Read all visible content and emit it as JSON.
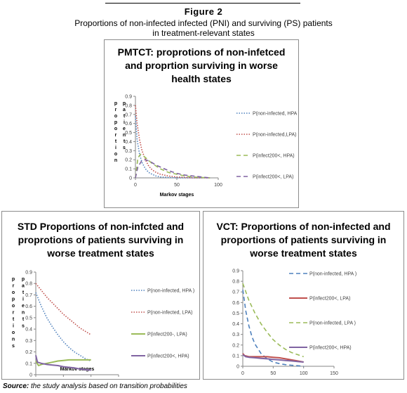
{
  "figure": {
    "title": "Figure 2",
    "caption_line1": "Proportions of non-infected infected (PNI) and surviving (PS) patients",
    "caption_line2": "in treatment-relevant states"
  },
  "source": {
    "label": "Source:",
    "text": "the study analysis based on transition probabilities"
  },
  "chart_data": [
    {
      "type": "line",
      "title_lines": [
        "PMTCT: proprotions of non-infetced",
        "and proprtion surviving in worse",
        "health states"
      ],
      "xlabel": "Markov stages",
      "ylabel": "p r o p o r t i o n",
      "ylabel2": "p a t i e n t s",
      "xlim": [
        0,
        100
      ],
      "ylim": [
        0,
        0.9
      ],
      "xticks": [
        0,
        50,
        100
      ],
      "yticks": [
        0,
        0.1,
        0.2,
        0.3,
        0.4,
        0.5,
        0.6,
        0.7,
        0.8,
        0.9
      ],
      "legend_position": "right",
      "series": [
        {
          "name": "P(non-infected, HPA )",
          "color": "#4f81bd",
          "style": "dotted",
          "x": [
            0,
            2,
            5,
            8,
            12,
            16,
            20,
            25,
            30,
            40,
            50,
            70,
            90
          ],
          "y": [
            0.68,
            0.42,
            0.26,
            0.17,
            0.1,
            0.06,
            0.04,
            0.02,
            0.01,
            0.005,
            0,
            0,
            0
          ]
        },
        {
          "name": "P(non-infected,LPA)",
          "color": "#c0504d",
          "style": "dotted",
          "x": [
            0,
            2,
            5,
            8,
            12,
            16,
            20,
            25,
            30,
            40,
            50,
            70,
            90
          ],
          "y": [
            0.8,
            0.6,
            0.42,
            0.3,
            0.2,
            0.13,
            0.09,
            0.06,
            0.04,
            0.02,
            0.01,
            0,
            0
          ]
        },
        {
          "name": "P(infect200<, HPA)",
          "color": "#9bbb59",
          "style": "dashed",
          "x": [
            0,
            3,
            6,
            10,
            15,
            20,
            25,
            30,
            40,
            50,
            60,
            70,
            80,
            90
          ],
          "y": [
            0,
            0.22,
            0.26,
            0.24,
            0.2,
            0.16,
            0.13,
            0.1,
            0.06,
            0.04,
            0.02,
            0.01,
            0.005,
            0
          ]
        },
        {
          "name": "P(infect200<, LPA)",
          "color": "#8064a2",
          "style": "dashed",
          "x": [
            0,
            3,
            7,
            12,
            18,
            25,
            30,
            40,
            50,
            60,
            70,
            80,
            90
          ],
          "y": [
            0,
            0.12,
            0.18,
            0.2,
            0.18,
            0.14,
            0.12,
            0.08,
            0.05,
            0.03,
            0.02,
            0.01,
            0
          ]
        }
      ]
    },
    {
      "type": "line",
      "title_lines": [
        "STD Proportions of non-infcted and",
        "proprotions of patients surviving in",
        "worse treatment states"
      ],
      "xlabel": "Markov stages",
      "ylabel": "p r o p o r t i o n s",
      "ylabel2": "p a t i e n t s",
      "xlim": [
        0,
        150
      ],
      "ylim": [
        0,
        0.9
      ],
      "xticks": [
        0,
        50,
        100,
        150
      ],
      "yticks": [
        0,
        0.1,
        0.2,
        0.3,
        0.4,
        0.5,
        0.6,
        0.7,
        0.8,
        0.9
      ],
      "legend_position": "right",
      "series": [
        {
          "name": "P(non-infected, HPA )",
          "color": "#4f81bd",
          "style": "dotted",
          "x": [
            0,
            10,
            20,
            30,
            40,
            50,
            60,
            70,
            80,
            90,
            100
          ],
          "y": [
            0.72,
            0.6,
            0.5,
            0.42,
            0.35,
            0.29,
            0.24,
            0.2,
            0.17,
            0.14,
            0.12
          ]
        },
        {
          "name": "P(non-infected, LPA)",
          "color": "#c0504d",
          "style": "dotted",
          "x": [
            0,
            10,
            20,
            30,
            40,
            50,
            60,
            70,
            80,
            90,
            100
          ],
          "y": [
            0.8,
            0.74,
            0.68,
            0.63,
            0.58,
            0.53,
            0.49,
            0.45,
            0.41,
            0.38,
            0.35
          ]
        },
        {
          "name": "P(infect200-, LPA)",
          "color": "#9bbb59",
          "style": "solid",
          "x": [
            0,
            5,
            10,
            20,
            30,
            40,
            50,
            60,
            70,
            80,
            90,
            100
          ],
          "y": [
            0.12,
            0.08,
            0.09,
            0.1,
            0.11,
            0.12,
            0.125,
            0.13,
            0.13,
            0.13,
            0.13,
            0.13
          ]
        },
        {
          "name": "P(infect200<, HPA)",
          "color": "#8064a2",
          "style": "solid",
          "x": [
            0,
            3,
            10,
            20,
            30,
            40,
            50,
            60,
            70,
            80,
            90,
            100
          ],
          "y": [
            0.17,
            0.11,
            0.1,
            0.09,
            0.085,
            0.08,
            0.07,
            0.065,
            0.06,
            0.05,
            0.045,
            0.04
          ]
        }
      ]
    },
    {
      "type": "line",
      "title_lines": [
        "VCT: Proportions  of non-infected and",
        "proportions of patients surviving in",
        "worse treatment states"
      ],
      "xlabel": "",
      "ylabel": "",
      "ylabel2": "",
      "xlim": [
        0,
        150
      ],
      "ylim": [
        0,
        0.9
      ],
      "xticks": [
        0,
        50,
        100,
        150
      ],
      "yticks": [
        0,
        0.1,
        0.2,
        0.3,
        0.4,
        0.5,
        0.6,
        0.7,
        0.8,
        0.9
      ],
      "legend_position": "right",
      "series": [
        {
          "name": "P(non-infected, HPA )",
          "color": "#4f81bd",
          "style": "dashed",
          "x": [
            0,
            5,
            10,
            15,
            20,
            30,
            40,
            50,
            60,
            70,
            80,
            90,
            100
          ],
          "y": [
            0.72,
            0.52,
            0.38,
            0.28,
            0.21,
            0.12,
            0.07,
            0.04,
            0.025,
            0.015,
            0.01,
            0.005,
            0
          ]
        },
        {
          "name": "P(infect200<, LPA)",
          "color": "#c0504d",
          "style": "solid",
          "x": [
            0,
            3,
            10,
            20,
            30,
            40,
            50,
            60,
            70,
            80,
            90,
            100
          ],
          "y": [
            0.12,
            0.1,
            0.09,
            0.09,
            0.09,
            0.09,
            0.085,
            0.08,
            0.07,
            0.06,
            0.05,
            0.04
          ]
        },
        {
          "name": "P(non-infected, LPA )",
          "color": "#9bbb59",
          "style": "dashed",
          "x": [
            0,
            10,
            20,
            30,
            40,
            50,
            60,
            70,
            80,
            90,
            100
          ],
          "y": [
            0.78,
            0.62,
            0.5,
            0.4,
            0.32,
            0.25,
            0.2,
            0.16,
            0.13,
            0.11,
            0.09
          ]
        },
        {
          "name": "P(infect200<, HPA)",
          "color": "#8064a2",
          "style": "solid",
          "x": [
            0,
            5,
            10,
            20,
            30,
            40,
            50,
            60,
            70,
            80,
            90,
            100
          ],
          "y": [
            0.11,
            0.09,
            0.085,
            0.08,
            0.075,
            0.07,
            0.065,
            0.06,
            0.055,
            0.05,
            0.045,
            0.04
          ]
        }
      ]
    }
  ]
}
